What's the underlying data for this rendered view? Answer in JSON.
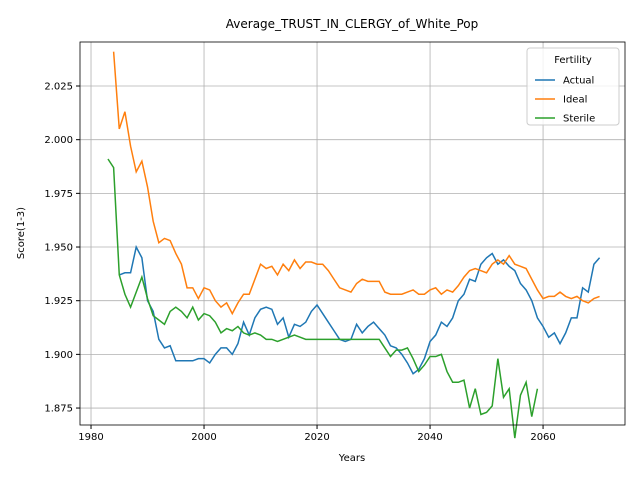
{
  "chart_data": {
    "type": "line",
    "title": "Average_TRUST_IN_CLERGY_of_White_Pop",
    "x_label": "Years",
    "y_label": "Score(1-3)",
    "xlim": [
      1978.05,
      2074.5
    ],
    "ylim": [
      1.8671,
      2.0455
    ],
    "xticks": [
      1980,
      2000,
      2020,
      2040,
      2060
    ],
    "yticks": [
      1.875,
      {
        "value": 1.9,
        "label": "1.900"
      },
      1.925,
      {
        "value": 1.95,
        "label": "1.950"
      },
      1.975,
      {
        "value": 2.0,
        "label": "2.000"
      },
      2.025
    ],
    "grid": true,
    "legend_title": "Fertility",
    "legend_position": "upper-right",
    "series": [
      {
        "name": "Actual",
        "color": "#1f77b4",
        "x": [
          1985,
          1986,
          1987,
          1988,
          1989,
          1990,
          1991,
          1992,
          1993,
          1994,
          1995,
          1996,
          1997,
          1998,
          1999,
          2000,
          2001,
          2002,
          2003,
          2004,
          2005,
          2006,
          2007,
          2008,
          2009,
          2010,
          2011,
          2012,
          2013,
          2014,
          2015,
          2016,
          2017,
          2018,
          2019,
          2020,
          2021,
          2022,
          2023,
          2024,
          2025,
          2026,
          2027,
          2028,
          2029,
          2030,
          2031,
          2032,
          2033,
          2034,
          2035,
          2036,
          2037,
          2038,
          2039,
          2040,
          2041,
          2042,
          2043,
          2044,
          2045,
          2046,
          2047,
          2048,
          2049,
          2050,
          2051,
          2052,
          2053,
          2054,
          2055,
          2056,
          2057,
          2058,
          2059,
          2060,
          2061,
          2062,
          2063,
          2064,
          2065,
          2066,
          2067,
          2068,
          2069,
          2070
        ],
        "values": [
          1.937,
          1.938,
          1.938,
          1.95,
          1.945,
          1.925,
          1.92,
          1.907,
          1.903,
          1.904,
          1.897,
          1.897,
          1.897,
          1.897,
          1.898,
          1.898,
          1.896,
          1.9,
          1.903,
          1.903,
          1.9,
          1.905,
          1.915,
          1.909,
          1.917,
          1.921,
          1.922,
          1.921,
          1.914,
          1.917,
          1.908,
          1.914,
          1.913,
          1.915,
          1.92,
          1.923,
          1.919,
          1.915,
          1.911,
          1.907,
          1.906,
          1.907,
          1.914,
          1.91,
          1.913,
          1.915,
          1.912,
          1.909,
          1.904,
          1.903,
          1.9,
          1.896,
          1.891,
          1.893,
          1.898,
          1.906,
          1.909,
          1.915,
          1.913,
          1.917,
          1.925,
          1.928,
          1.935,
          1.934,
          1.942,
          1.945,
          1.947,
          1.942,
          1.944,
          1.941,
          1.939,
          1.933,
          1.93,
          1.925,
          1.917,
          1.913,
          1.908,
          1.91,
          1.905,
          1.91,
          1.917,
          1.917,
          1.931,
          1.929,
          1.942,
          1.945
        ]
      },
      {
        "name": "Ideal",
        "color": "#ff7f0e",
        "x": [
          1984,
          1985,
          1986,
          1987,
          1988,
          1989,
          1990,
          1991,
          1992,
          1993,
          1994,
          1995,
          1996,
          1997,
          1998,
          1999,
          2000,
          2001,
          2002,
          2003,
          2004,
          2005,
          2006,
          2007,
          2008,
          2009,
          2010,
          2011,
          2012,
          2013,
          2014,
          2015,
          2016,
          2017,
          2018,
          2019,
          2020,
          2021,
          2022,
          2023,
          2024,
          2025,
          2026,
          2027,
          2028,
          2029,
          2030,
          2031,
          2032,
          2033,
          2034,
          2035,
          2036,
          2037,
          2038,
          2039,
          2040,
          2041,
          2042,
          2043,
          2044,
          2045,
          2046,
          2047,
          2048,
          2049,
          2050,
          2051,
          2052,
          2053,
          2054,
          2055,
          2056,
          2057,
          2058,
          2059,
          2060,
          2061,
          2062,
          2063,
          2064,
          2065,
          2066,
          2067,
          2068,
          2069,
          2070
        ],
        "values": [
          2.041,
          2.005,
          2.013,
          1.997,
          1.985,
          1.99,
          1.978,
          1.962,
          1.952,
          1.954,
          1.953,
          1.947,
          1.942,
          1.931,
          1.931,
          1.926,
          1.931,
          1.93,
          1.925,
          1.922,
          1.924,
          1.919,
          1.924,
          1.928,
          1.928,
          1.935,
          1.942,
          1.94,
          1.941,
          1.937,
          1.942,
          1.939,
          1.944,
          1.94,
          1.943,
          1.943,
          1.942,
          1.942,
          1.939,
          1.935,
          1.931,
          1.93,
          1.929,
          1.933,
          1.935,
          1.934,
          1.934,
          1.934,
          1.929,
          1.928,
          1.928,
          1.928,
          1.929,
          1.93,
          1.928,
          1.928,
          1.93,
          1.931,
          1.928,
          1.93,
          1.929,
          1.932,
          1.936,
          1.939,
          1.94,
          1.939,
          1.938,
          1.942,
          1.944,
          1.942,
          1.946,
          1.942,
          1.941,
          1.94,
          1.935,
          1.93,
          1.926,
          1.927,
          1.927,
          1.929,
          1.927,
          1.926,
          1.927,
          1.925,
          1.924,
          1.926,
          1.927
        ]
      },
      {
        "name": "Sterile",
        "color": "#2ca02c",
        "x": [
          1983,
          1984,
          1985,
          1986,
          1987,
          1988,
          1989,
          1990,
          1991,
          1992,
          1993,
          1994,
          1995,
          1996,
          1997,
          1998,
          1999,
          2000,
          2001,
          2002,
          2003,
          2004,
          2005,
          2006,
          2007,
          2008,
          2009,
          2010,
          2011,
          2012,
          2013,
          2014,
          2015,
          2016,
          2017,
          2018,
          2019,
          2020,
          2021,
          2022,
          2023,
          2024,
          2025,
          2026,
          2027,
          2028,
          2029,
          2030,
          2031,
          2032,
          2033,
          2034,
          2035,
          2036,
          2037,
          2038,
          2039,
          2040,
          2041,
          2042,
          2043,
          2044,
          2045,
          2046,
          2047,
          2048,
          2049,
          2050,
          2051,
          2052,
          2053,
          2054,
          2055,
          2056,
          2057,
          2058,
          2059
        ],
        "values": [
          1.991,
          1.987,
          1.937,
          1.928,
          1.922,
          1.929,
          1.936,
          1.926,
          1.918,
          1.916,
          1.914,
          1.92,
          1.922,
          1.92,
          1.917,
          1.922,
          1.916,
          1.919,
          1.918,
          1.915,
          1.91,
          1.912,
          1.911,
          1.913,
          1.91,
          1.909,
          1.91,
          1.909,
          1.907,
          1.907,
          1.906,
          1.907,
          1.908,
          1.909,
          1.908,
          1.907,
          1.907,
          1.907,
          1.907,
          1.907,
          1.907,
          1.907,
          1.907,
          1.907,
          1.907,
          1.907,
          1.907,
          1.907,
          1.907,
          1.903,
          1.899,
          1.902,
          1.902,
          1.903,
          1.898,
          1.892,
          1.895,
          1.899,
          1.899,
          1.9,
          1.892,
          1.887,
          1.887,
          1.888,
          1.875,
          1.884,
          1.872,
          1.873,
          1.876,
          1.898,
          1.88,
          1.884,
          1.861,
          1.881,
          1.887,
          1.871,
          1.884
        ]
      }
    ]
  }
}
